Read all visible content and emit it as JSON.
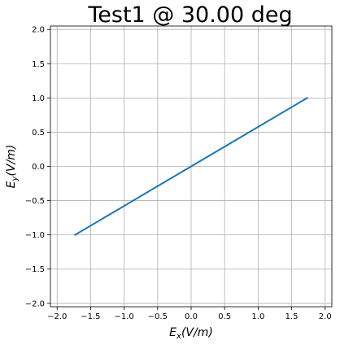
{
  "chart_data": {
    "type": "line",
    "title": "Test1 @ 30.00 deg",
    "xlabel": {
      "symbol": "E",
      "sub": "x",
      "unit": "(V/m)"
    },
    "ylabel": {
      "symbol": "E",
      "sub": "y",
      "unit": "(V/m)"
    },
    "xlim": [
      -2.1,
      2.1
    ],
    "ylim": [
      -2.05,
      2.05
    ],
    "xticks": [
      -2.0,
      -1.5,
      -1.0,
      -0.5,
      0.0,
      0.5,
      1.0,
      1.5,
      2.0
    ],
    "yticks": [
      -2.0,
      -1.5,
      -1.0,
      -0.5,
      0.0,
      0.5,
      1.0,
      1.5,
      2.0
    ],
    "grid": true,
    "series": [
      {
        "color": "#1f77b4",
        "x": [
          -1.732,
          1.732
        ],
        "y": [
          -1.0,
          1.0
        ]
      }
    ]
  }
}
